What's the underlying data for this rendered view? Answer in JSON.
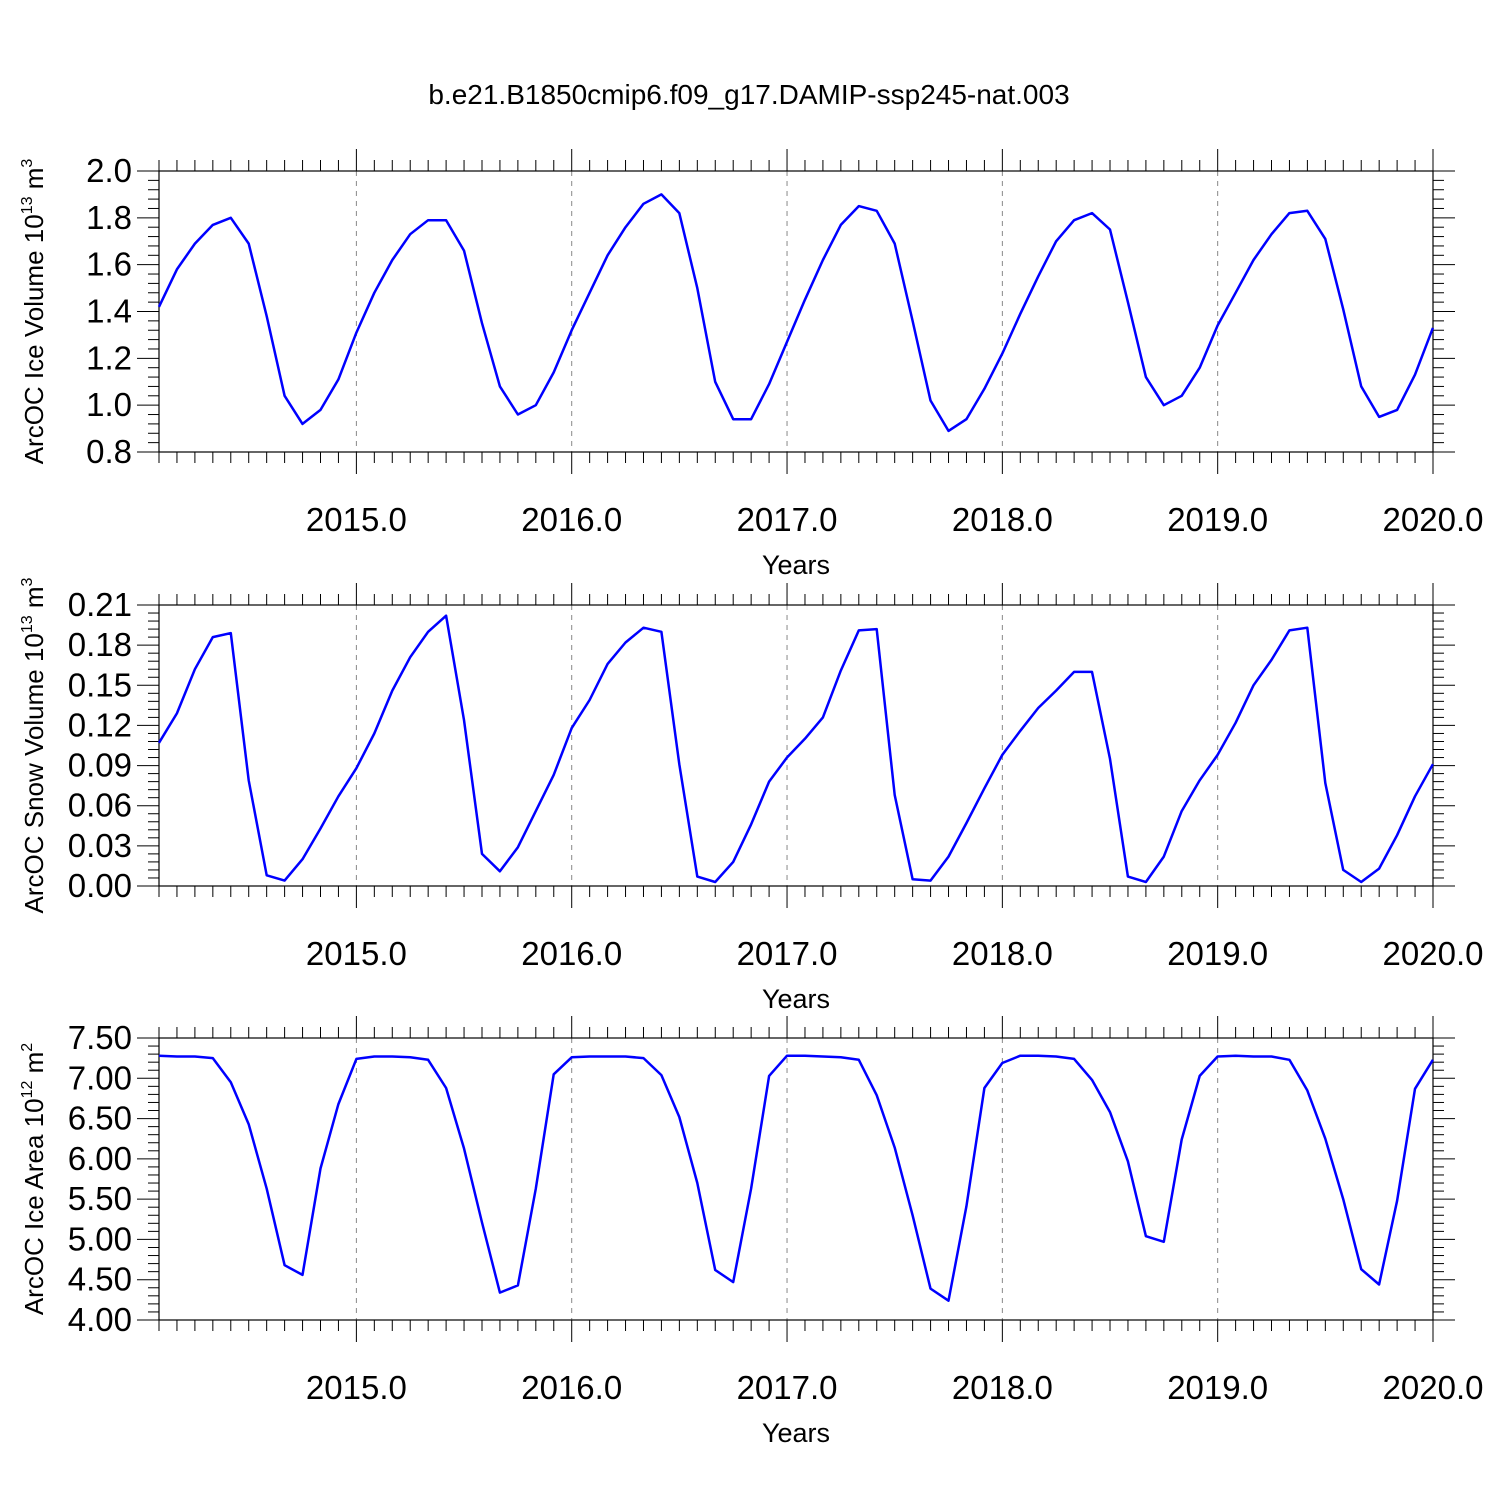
{
  "title": "b.e21.B1850cmip6.f09_g17.DAMIP-ssp245-nat.003",
  "chart_data": [
    {
      "type": "line",
      "ylabel": {
        "main": "ArcOC Ice Volume 10",
        "exp": "13",
        "unit": " m",
        "unit_exp": "3"
      },
      "xlabel": "Years",
      "xlim": [
        2014.0833,
        2020.0
      ],
      "ylim": [
        0.8,
        2.0
      ],
      "x_ticks": [
        "2015.0",
        "2016.0",
        "2017.0",
        "2018.0",
        "2019.0",
        "2020.0"
      ],
      "y_ticks": [
        "0.8",
        "1.0",
        "1.2",
        "1.4",
        "1.6",
        "1.8",
        "2.0"
      ],
      "grid": "vertical dashed at labeled years",
      "line_color": "#0000ff",
      "x_start": 2014.0833,
      "x_step": 0.08333,
      "values": [
        1.42,
        1.58,
        1.69,
        1.77,
        1.8,
        1.69,
        1.38,
        1.04,
        0.92,
        0.98,
        1.11,
        1.31,
        1.48,
        1.62,
        1.73,
        1.79,
        1.79,
        1.66,
        1.35,
        1.08,
        0.96,
        1.0,
        1.14,
        1.32,
        1.48,
        1.64,
        1.76,
        1.86,
        1.9,
        1.82,
        1.5,
        1.1,
        0.94,
        0.94,
        1.09,
        1.27,
        1.45,
        1.62,
        1.77,
        1.85,
        1.83,
        1.69,
        1.36,
        1.02,
        0.89,
        0.94,
        1.07,
        1.22,
        1.39,
        1.55,
        1.7,
        1.79,
        1.82,
        1.75,
        1.44,
        1.12,
        1.0,
        1.04,
        1.16,
        1.34,
        1.48,
        1.62,
        1.73,
        1.82,
        1.83,
        1.71,
        1.41,
        1.08,
        0.95,
        0.98,
        1.13,
        1.33
      ]
    },
    {
      "type": "line",
      "ylabel": {
        "main": "ArcOC Snow Volume 10",
        "exp": "13",
        "unit": " m",
        "unit_exp": "3"
      },
      "xlabel": "Years",
      "xlim": [
        2014.0833,
        2020.0
      ],
      "ylim": [
        0.0,
        0.21
      ],
      "x_ticks": [
        "2015.0",
        "2016.0",
        "2017.0",
        "2018.0",
        "2019.0",
        "2020.0"
      ],
      "y_ticks": [
        "0.00",
        "0.03",
        "0.06",
        "0.09",
        "0.12",
        "0.15",
        "0.18",
        "0.21"
      ],
      "grid": "vertical dashed at labeled years",
      "line_color": "#0000ff",
      "x_start": 2014.0833,
      "x_step": 0.08333,
      "values": [
        0.107,
        0.129,
        0.162,
        0.186,
        0.189,
        0.079,
        0.008,
        0.004,
        0.02,
        0.043,
        0.067,
        0.088,
        0.114,
        0.146,
        0.171,
        0.19,
        0.202,
        0.124,
        0.024,
        0.011,
        0.029,
        0.056,
        0.083,
        0.118,
        0.139,
        0.166,
        0.182,
        0.193,
        0.19,
        0.091,
        0.007,
        0.003,
        0.018,
        0.046,
        0.078,
        0.096,
        0.11,
        0.126,
        0.161,
        0.191,
        0.192,
        0.068,
        0.005,
        0.004,
        0.022,
        0.047,
        0.073,
        0.098,
        0.116,
        0.133,
        0.146,
        0.16,
        0.16,
        0.095,
        0.007,
        0.003,
        0.022,
        0.056,
        0.079,
        0.098,
        0.122,
        0.15,
        0.169,
        0.191,
        0.193,
        0.077,
        0.012,
        0.003,
        0.013,
        0.038,
        0.067,
        0.091
      ]
    },
    {
      "type": "line",
      "ylabel": {
        "main": "ArcOC Ice Area 10",
        "exp": "12",
        "unit": " m",
        "unit_exp": "2"
      },
      "xlabel": "Years",
      "xlim": [
        2014.0833,
        2020.0
      ],
      "ylim": [
        4.0,
        7.5
      ],
      "x_ticks": [
        "2015.0",
        "2016.0",
        "2017.0",
        "2018.0",
        "2019.0",
        "2020.0"
      ],
      "y_ticks": [
        "4.00",
        "4.50",
        "5.00",
        "5.50",
        "6.00",
        "6.50",
        "7.00",
        "7.50"
      ],
      "grid": "vertical dashed at labeled years",
      "line_color": "#0000ff",
      "x_start": 2014.0833,
      "x_step": 0.08333,
      "values": [
        7.28,
        7.27,
        7.27,
        7.25,
        6.95,
        6.43,
        5.63,
        4.68,
        4.56,
        5.88,
        6.68,
        7.24,
        7.27,
        7.27,
        7.26,
        7.23,
        6.88,
        6.13,
        5.21,
        4.34,
        4.43,
        5.63,
        7.05,
        7.26,
        7.27,
        7.27,
        7.27,
        7.25,
        7.04,
        6.52,
        5.7,
        4.62,
        4.47,
        5.63,
        7.03,
        7.28,
        7.28,
        7.27,
        7.26,
        7.23,
        6.79,
        6.14,
        5.3,
        4.39,
        4.24,
        5.41,
        6.88,
        7.19,
        7.28,
        7.28,
        7.27,
        7.24,
        6.98,
        6.58,
        5.97,
        5.04,
        4.97,
        6.24,
        7.03,
        7.27,
        7.28,
        7.27,
        7.27,
        7.23,
        6.85,
        6.25,
        5.5,
        4.63,
        4.44,
        5.48,
        6.87,
        7.23
      ]
    }
  ]
}
